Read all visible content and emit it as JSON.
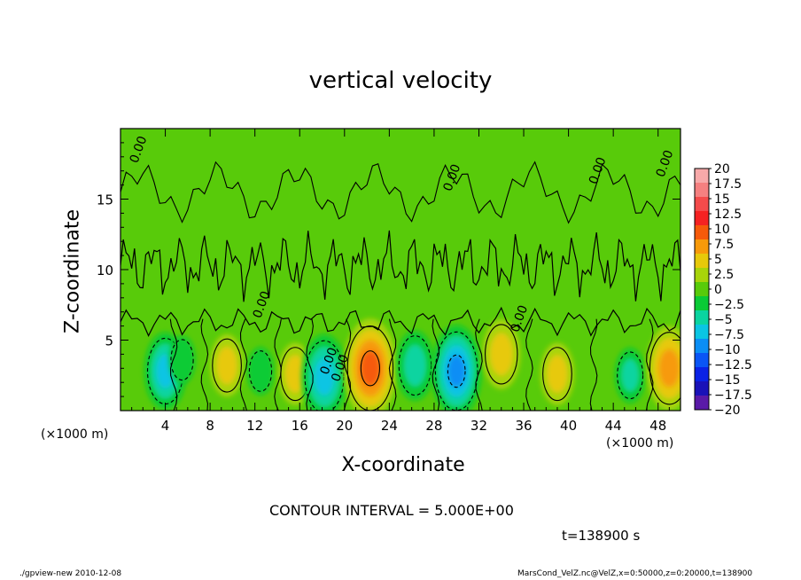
{
  "labels": {
    "contour_interval": "CONTOUR INTERVAL = 5.000E+00",
    "time": "t=138900 s",
    "footer_left": "./gpview-new  2010-12-08",
    "footer_right": "MarsCond_VelZ.nc@VelZ,x=0:50000,z=0:20000,t=138900",
    "x_unit_left": "(×1000 m)",
    "x_unit_right": "(×1000 m)"
  },
  "chart_data": {
    "type": "heatmap",
    "title": "vertical velocity",
    "xlabel": "X-coordinate",
    "ylabel": "Z-coordinate",
    "xlim": [
      0,
      50
    ],
    "ylim": [
      0,
      20
    ],
    "x_ticks": [
      4,
      8,
      12,
      16,
      20,
      24,
      28,
      32,
      36,
      40,
      44,
      48
    ],
    "y_ticks": [
      5,
      10,
      15
    ],
    "contour_label": "0.00",
    "contour_label_positions": [
      [
        1.5,
        17.5
      ],
      [
        12.5,
        6.5
      ],
      [
        18.5,
        2.5
      ],
      [
        19.5,
        2.0
      ],
      [
        29.5,
        15.5
      ],
      [
        35.5,
        5.5
      ],
      [
        42.5,
        16.0
      ],
      [
        48.5,
        16.5
      ]
    ],
    "colorbar": {
      "ticks": [
        "20",
        "17.5",
        "15",
        "12.5",
        "10",
        "7.5",
        "5",
        "2.5",
        "0",
        "−2.5",
        "−5",
        "−7.5",
        "−10",
        "−12.5",
        "−15",
        "−17.5",
        "−20"
      ],
      "colors": [
        "#f7a9a9",
        "#f58080",
        "#f44b4b",
        "#f52222",
        "#f65a0a",
        "#f79a0a",
        "#e7c90a",
        "#a8d40a",
        "#58cb0a",
        "#0acb36",
        "#0ad4a0",
        "#0ac5e3",
        "#0a8ef5",
        "#0a55f5",
        "#0a22e6",
        "#1a12b8",
        "#5a1aa8"
      ]
    },
    "cells": [
      {
        "x": 4,
        "z": 2.8,
        "w": -8
      },
      {
        "x": 5.5,
        "z": 3.6,
        "w": -4
      },
      {
        "x": 9.5,
        "z": 3.2,
        "w": 6
      },
      {
        "x": 12.5,
        "z": 2.8,
        "w": -4
      },
      {
        "x": 15.6,
        "z": 2.6,
        "w": 6
      },
      {
        "x": 18.2,
        "z": 2.4,
        "w": -9
      },
      {
        "x": 22.3,
        "z": 3.0,
        "w": 11
      },
      {
        "x": 26.3,
        "z": 3.2,
        "w": -7
      },
      {
        "x": 30.0,
        "z": 2.8,
        "w": -10
      },
      {
        "x": 34.0,
        "z": 4.0,
        "w": 7
      },
      {
        "x": 39.0,
        "z": 2.6,
        "w": 6
      },
      {
        "x": 45.5,
        "z": 2.5,
        "w": -5
      },
      {
        "x": 49.0,
        "z": 3.0,
        "w": 9
      }
    ]
  }
}
